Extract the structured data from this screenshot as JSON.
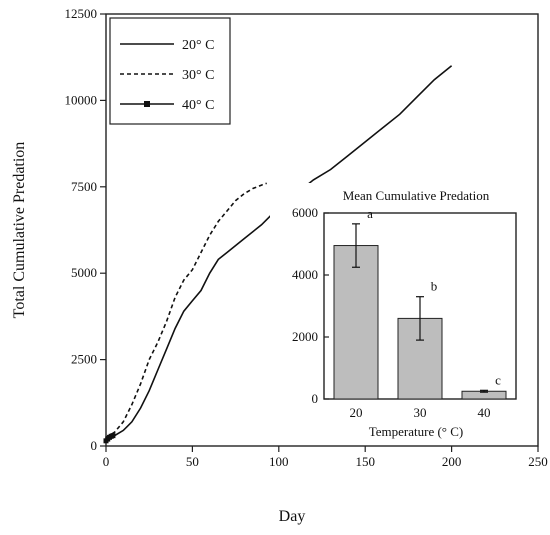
{
  "chart_data": [
    {
      "type": "line",
      "xlabel": "Day",
      "ylabel": "Total Cumulative Predation",
      "xlim": [
        0,
        250
      ],
      "ylim": [
        0,
        12500
      ],
      "xticks": [
        "0",
        "50",
        "100",
        "150",
        "200",
        "250"
      ],
      "yticks": [
        "0",
        "2500",
        "5000",
        "7500",
        "10000",
        "12500"
      ],
      "legend_position": "top-left",
      "series": [
        {
          "name": "20° C",
          "style": "solid",
          "x": [
            0,
            5,
            10,
            15,
            20,
            25,
            30,
            35,
            40,
            45,
            50,
            55,
            60,
            65,
            70,
            80,
            90,
            100,
            110,
            120,
            130,
            140,
            150,
            160,
            170,
            180,
            190,
            200
          ],
          "y": [
            200,
            300,
            450,
            700,
            1100,
            1600,
            2200,
            2800,
            3400,
            3900,
            4200,
            4500,
            5000,
            5400,
            5600,
            6000,
            6400,
            6900,
            7300,
            7700,
            8000,
            8400,
            8800,
            9200,
            9600,
            10100,
            10600,
            11000
          ]
        },
        {
          "name": "30° C",
          "style": "dashed",
          "x": [
            0,
            5,
            10,
            15,
            20,
            25,
            30,
            35,
            40,
            45,
            50,
            55,
            60,
            65,
            70,
            75,
            80,
            85,
            90,
            93
          ],
          "y": [
            250,
            400,
            700,
            1200,
            1800,
            2500,
            3000,
            3600,
            4300,
            4800,
            5100,
            5600,
            6100,
            6500,
            6800,
            7100,
            7300,
            7450,
            7550,
            7600
          ]
        },
        {
          "name": "40° C",
          "style": "solid-square-markers",
          "x": [
            0,
            1,
            2,
            3,
            4
          ],
          "y": [
            150,
            200,
            250,
            280,
            300
          ]
        }
      ]
    },
    {
      "type": "bar",
      "title": "Mean Cumulative Predation",
      "xlabel": "Temperature (° C)",
      "ylabel": "",
      "ylim": [
        0,
        6000
      ],
      "yticks": [
        "0",
        "2000",
        "4000",
        "6000"
      ],
      "categories": [
        "20",
        "30",
        "40"
      ],
      "values": [
        4950,
        2600,
        250
      ],
      "error": [
        700,
        700,
        30
      ],
      "group_labels": [
        "a",
        "b",
        "c"
      ],
      "bar_color": "#bdbdbd"
    }
  ]
}
